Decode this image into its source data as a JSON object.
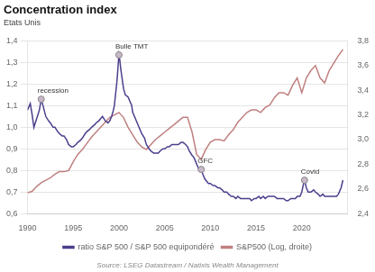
{
  "chart_data": {
    "type": "line",
    "title": "Concentration index",
    "subtitle": "Etats Unis",
    "source": "Source: LSEG Datastream / Natixis Wealth Management",
    "xlim": [
      1990,
      2025
    ],
    "xticks": [
      1990,
      1995,
      2000,
      2005,
      2010,
      2015,
      2020
    ],
    "ylim": [
      0.6,
      1.4
    ],
    "yticks": [
      {
        "value": 0.6,
        "label": "0,6"
      },
      {
        "value": 0.7,
        "label": "0,7"
      },
      {
        "value": 0.8,
        "label": "0,8"
      },
      {
        "value": 0.9,
        "label": "0,9"
      },
      {
        "value": 1.0,
        "label": "1,0"
      },
      {
        "value": 1.1,
        "label": "1,1"
      },
      {
        "value": 1.2,
        "label": "1,2"
      },
      {
        "value": 1.3,
        "label": "1,3"
      },
      {
        "value": 1.4,
        "label": "1,4"
      }
    ],
    "y2lim": [
      2.4,
      3.8
    ],
    "y2ticks": [
      {
        "value": 2.4,
        "label": "2,4"
      },
      {
        "value": 2.6,
        "label": "2,6"
      },
      {
        "value": 2.8,
        "label": "2,8"
      },
      {
        "value": 3.0,
        "label": "3,0"
      },
      {
        "value": 3.2,
        "label": "3,2"
      },
      {
        "value": 3.4,
        "label": "3,4"
      },
      {
        "value": 3.6,
        "label": "3,6"
      },
      {
        "value": 3.8,
        "label": "3,8"
      }
    ],
    "grid": true,
    "legend": "bottom",
    "series": [
      {
        "name": "ratio S&P 500 / S&P 500 equipondéré",
        "color": "#4B3F8C",
        "axis": "y",
        "x": [
          1990.0,
          1990.3,
          1990.5,
          1990.7,
          1991.0,
          1991.3,
          1991.5,
          1991.7,
          1992.0,
          1992.3,
          1992.5,
          1992.8,
          1993.0,
          1993.3,
          1993.5,
          1993.8,
          1994.0,
          1994.3,
          1994.5,
          1994.8,
          1995.0,
          1995.3,
          1995.5,
          1995.8,
          1996.0,
          1996.3,
          1996.5,
          1996.8,
          1997.0,
          1997.3,
          1997.5,
          1997.8,
          1998.0,
          1998.2,
          1998.5,
          1998.8,
          1999.0,
          1999.2,
          1999.4,
          1999.5,
          1999.6,
          1999.7,
          1999.8,
          1999.9,
          2000.0,
          2000.1,
          2000.2,
          2000.3,
          2000.4,
          2000.5,
          2000.7,
          2001.0,
          2001.2,
          2001.4,
          2001.5,
          2001.7,
          2002.0,
          2002.3,
          2002.5,
          2002.8,
          2003.0,
          2003.3,
          2003.5,
          2003.8,
          2004.0,
          2004.3,
          2004.5,
          2004.8,
          2005.0,
          2005.3,
          2005.5,
          2005.8,
          2006.0,
          2006.3,
          2006.5,
          2006.8,
          2007.0,
          2007.3,
          2007.5,
          2007.7,
          2008.0,
          2008.2,
          2008.4,
          2008.6,
          2008.8,
          2009.0,
          2009.2,
          2009.4,
          2009.6,
          2009.8,
          2010.0,
          2010.3,
          2010.5,
          2010.8,
          2011.0,
          2011.3,
          2011.5,
          2011.8,
          2012.0,
          2012.3,
          2012.5,
          2012.8,
          2013.0,
          2013.3,
          2013.5,
          2013.8,
          2014.0,
          2014.3,
          2014.5,
          2014.8,
          2015.0,
          2015.3,
          2015.5,
          2015.8,
          2016.0,
          2016.3,
          2016.5,
          2016.8,
          2017.0,
          2017.3,
          2017.5,
          2017.8,
          2018.0,
          2018.3,
          2018.5,
          2018.8,
          2019.0,
          2019.3,
          2019.5,
          2019.8,
          2020.0,
          2020.2,
          2020.3,
          2020.5,
          2020.7,
          2021.0,
          2021.3,
          2021.5,
          2021.8,
          2022.0,
          2022.3,
          2022.5,
          2022.8,
          2023.0,
          2023.3,
          2023.5,
          2023.8,
          2024.0,
          2024.3,
          2024.5
        ],
        "values": [
          1.08,
          1.11,
          1.06,
          1.0,
          1.04,
          1.08,
          1.13,
          1.1,
          1.05,
          1.03,
          1.02,
          1.0,
          1.0,
          0.98,
          0.97,
          0.96,
          0.96,
          0.94,
          0.92,
          0.91,
          0.91,
          0.92,
          0.93,
          0.94,
          0.95,
          0.97,
          0.98,
          0.99,
          1.0,
          1.01,
          1.02,
          1.03,
          1.04,
          1.05,
          1.03,
          1.02,
          1.03,
          1.05,
          1.08,
          1.1,
          1.14,
          1.18,
          1.22,
          1.28,
          1.335,
          1.31,
          1.27,
          1.24,
          1.21,
          1.18,
          1.15,
          1.14,
          1.12,
          1.1,
          1.07,
          1.05,
          1.02,
          0.99,
          0.97,
          0.95,
          0.92,
          0.9,
          0.89,
          0.88,
          0.88,
          0.88,
          0.89,
          0.9,
          0.9,
          0.91,
          0.91,
          0.92,
          0.92,
          0.92,
          0.92,
          0.93,
          0.93,
          0.92,
          0.91,
          0.89,
          0.87,
          0.86,
          0.84,
          0.82,
          0.8,
          0.805,
          0.78,
          0.76,
          0.75,
          0.74,
          0.74,
          0.73,
          0.73,
          0.72,
          0.72,
          0.71,
          0.7,
          0.7,
          0.69,
          0.68,
          0.68,
          0.67,
          0.68,
          0.67,
          0.67,
          0.67,
          0.67,
          0.67,
          0.66,
          0.67,
          0.67,
          0.68,
          0.67,
          0.68,
          0.67,
          0.68,
          0.68,
          0.68,
          0.68,
          0.67,
          0.67,
          0.67,
          0.67,
          0.66,
          0.66,
          0.67,
          0.67,
          0.67,
          0.68,
          0.68,
          0.7,
          0.74,
          0.755,
          0.72,
          0.7,
          0.7,
          0.71,
          0.7,
          0.69,
          0.68,
          0.69,
          0.68,
          0.68,
          0.68,
          0.68,
          0.68,
          0.68,
          0.69,
          0.72,
          0.755
        ]
      },
      {
        "name": "S&P500 (Log, droite)",
        "color": "#C08080",
        "axis": "y2",
        "x": [
          1990.0,
          1990.5,
          1991.0,
          1991.5,
          1992.0,
          1992.5,
          1993.0,
          1993.5,
          1994.0,
          1994.5,
          1995.0,
          1995.5,
          1996.0,
          1996.5,
          1997.0,
          1997.5,
          1998.0,
          1998.5,
          1999.0,
          1999.5,
          2000.0,
          2000.5,
          2001.0,
          2001.5,
          2002.0,
          2002.5,
          2003.0,
          2003.5,
          2004.0,
          2004.5,
          2005.0,
          2005.5,
          2006.0,
          2006.5,
          2007.0,
          2007.5,
          2008.0,
          2008.5,
          2009.0,
          2009.5,
          2010.0,
          2010.5,
          2011.0,
          2011.5,
          2012.0,
          2012.5,
          2013.0,
          2013.5,
          2014.0,
          2014.5,
          2015.0,
          2015.5,
          2016.0,
          2016.5,
          2017.0,
          2017.5,
          2018.0,
          2018.5,
          2019.0,
          2019.5,
          2020.0,
          2020.5,
          2021.0,
          2021.5,
          2022.0,
          2022.5,
          2023.0,
          2023.5,
          2024.0,
          2024.5
        ],
        "values": [
          2.57,
          2.58,
          2.62,
          2.65,
          2.67,
          2.69,
          2.72,
          2.74,
          2.74,
          2.75,
          2.82,
          2.88,
          2.92,
          2.97,
          3.02,
          3.06,
          3.1,
          3.14,
          3.18,
          3.2,
          3.22,
          3.18,
          3.1,
          3.04,
          2.98,
          2.94,
          2.92,
          2.96,
          3.0,
          3.03,
          3.06,
          3.09,
          3.12,
          3.15,
          3.18,
          3.18,
          3.06,
          2.88,
          2.84,
          2.92,
          2.98,
          3.0,
          3.0,
          2.99,
          3.04,
          3.08,
          3.14,
          3.18,
          3.22,
          3.24,
          3.24,
          3.22,
          3.26,
          3.28,
          3.34,
          3.38,
          3.38,
          3.36,
          3.44,
          3.5,
          3.38,
          3.5,
          3.56,
          3.6,
          3.5,
          3.46,
          3.56,
          3.62,
          3.68,
          3.73
        ]
      }
    ],
    "annotations": [
      {
        "label": "recession",
        "x": 1991.5,
        "y": 1.13
      },
      {
        "label": "Bulle TMT",
        "x": 2000.0,
        "y": 1.335
      },
      {
        "label": "GFC",
        "x": 2009.0,
        "y": 0.805
      },
      {
        "label": "Covid",
        "x": 2020.3,
        "y": 0.755
      }
    ]
  }
}
